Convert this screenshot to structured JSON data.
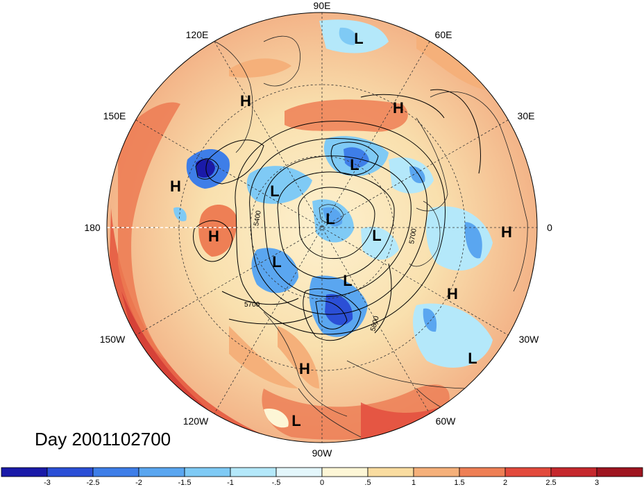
{
  "title": "Day 2001102700",
  "projection": "north-polar-stereographic",
  "longitude_labels": [
    "90E",
    "60E",
    "30E",
    "0",
    "30W",
    "60W",
    "90W",
    "120W",
    "150W",
    "180",
    "150E",
    "120E"
  ],
  "contour_labels": [
    "5400",
    "5700",
    "5700",
    "5800"
  ],
  "centers": [
    {
      "type": "L"
    },
    {
      "type": "H"
    },
    {
      "type": "H"
    },
    {
      "type": "L"
    },
    {
      "type": "H"
    },
    {
      "type": "L"
    },
    {
      "type": "H"
    },
    {
      "type": "L"
    },
    {
      "type": "L"
    },
    {
      "type": "H"
    },
    {
      "type": "L"
    },
    {
      "type": "L"
    },
    {
      "type": "H"
    },
    {
      "type": "L"
    },
    {
      "type": "H"
    },
    {
      "type": "L"
    }
  ],
  "colorbar": {
    "ticks": [
      "-3",
      "-2.5",
      "-2",
      "-1.5",
      "-1",
      "-.5",
      "0",
      ".5",
      "1",
      "1.5",
      "2",
      "2.5",
      "3"
    ],
    "colors": [
      "#1a1aa8",
      "#2b4fd6",
      "#3e7ee8",
      "#5aa6f0",
      "#7fcaf5",
      "#b4e8fa",
      "#e3f6fb",
      "#fdf6d6",
      "#f9dca0",
      "#f5b07a",
      "#ee7f55",
      "#e24a3c",
      "#c5282d",
      "#9e1520"
    ]
  }
}
